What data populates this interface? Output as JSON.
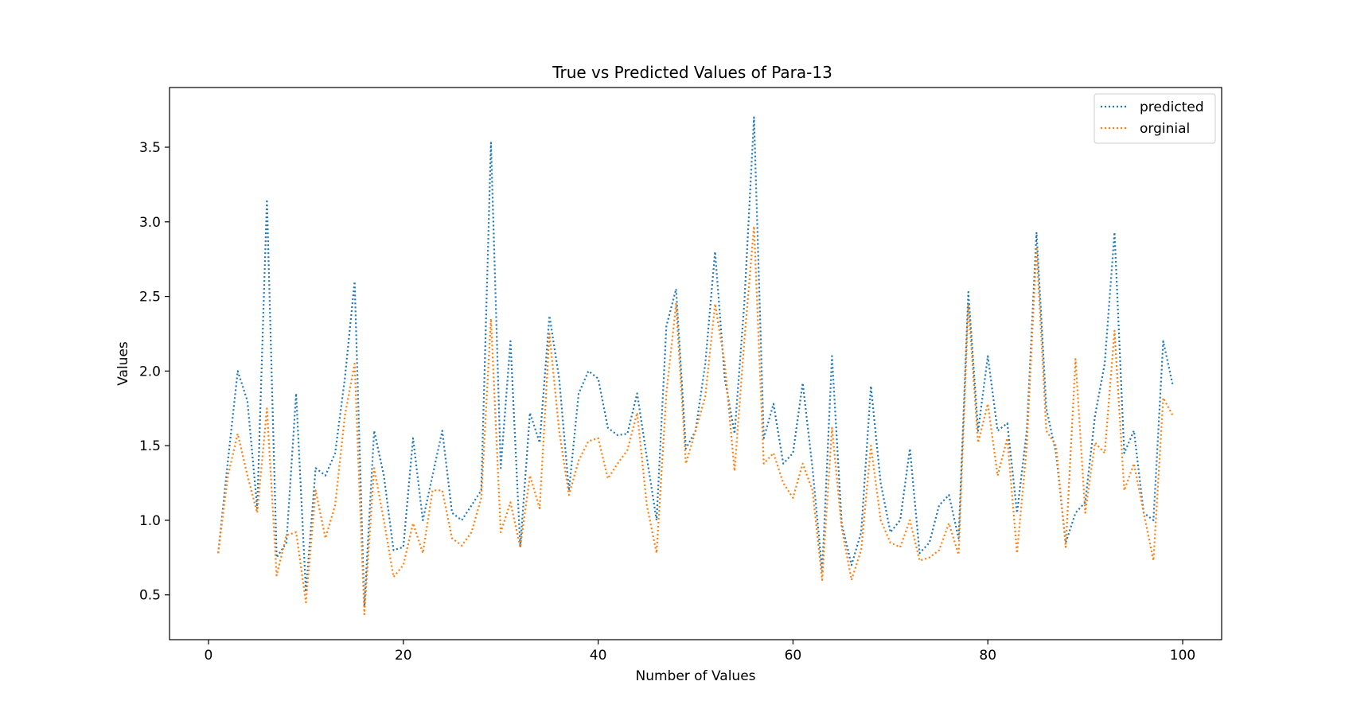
{
  "chart_data": {
    "type": "line",
    "title": "True vs Predicted Values of Para-13",
    "xlabel": "Number of Values",
    "ylabel": "Values",
    "xlim": [
      -4,
      104
    ],
    "ylim": [
      0.2,
      3.9
    ],
    "xticks": [
      0,
      20,
      40,
      60,
      80,
      100
    ],
    "yticks": [
      0.5,
      1.0,
      1.5,
      2.0,
      2.5,
      3.0,
      3.5
    ],
    "xtick_labels": [
      "0",
      "20",
      "40",
      "60",
      "80",
      "100"
    ],
    "ytick_labels": [
      "0.5",
      "1.0",
      "1.5",
      "2.0",
      "2.5",
      "3.0",
      "3.5"
    ],
    "grid": false,
    "legend_position": "top-right",
    "line_style": "dotted",
    "x": [
      1,
      2,
      3,
      4,
      5,
      6,
      7,
      8,
      9,
      10,
      11,
      12,
      13,
      14,
      15,
      16,
      17,
      18,
      19,
      20,
      21,
      22,
      23,
      24,
      25,
      26,
      27,
      28,
      29,
      30,
      31,
      32,
      33,
      34,
      35,
      36,
      37,
      38,
      39,
      40,
      41,
      42,
      43,
      44,
      45,
      46,
      47,
      48,
      49,
      50,
      51,
      52,
      53,
      54,
      55,
      56,
      57,
      58,
      59,
      60,
      61,
      62,
      63,
      64,
      65,
      66,
      67,
      68,
      69,
      70,
      71,
      72,
      73,
      74,
      75,
      76,
      77,
      78,
      79,
      80,
      81,
      82,
      83,
      84,
      85,
      86,
      87,
      88,
      89,
      90,
      91,
      92,
      93,
      94,
      95,
      96,
      97,
      98,
      99
    ],
    "series": [
      {
        "name": "predicted",
        "color": "#1f77b4",
        "values": [
          0.78,
          1.4,
          2.0,
          1.8,
          1.08,
          3.15,
          0.75,
          0.85,
          1.85,
          0.52,
          1.35,
          1.3,
          1.45,
          1.95,
          2.6,
          0.42,
          1.6,
          1.3,
          0.8,
          0.82,
          1.55,
          1.0,
          1.3,
          1.6,
          1.05,
          1.0,
          1.1,
          1.2,
          3.53,
          1.35,
          2.2,
          0.82,
          1.72,
          1.52,
          2.37,
          1.95,
          1.2,
          1.85,
          2.0,
          1.95,
          1.62,
          1.57,
          1.58,
          1.85,
          1.42,
          1.0,
          2.3,
          2.55,
          1.48,
          1.6,
          2.05,
          2.8,
          1.95,
          1.58,
          2.45,
          3.7,
          1.55,
          1.78,
          1.38,
          1.45,
          1.92,
          1.35,
          0.66,
          2.1,
          0.98,
          0.7,
          0.92,
          1.9,
          1.25,
          0.92,
          1.0,
          1.48,
          0.78,
          0.85,
          1.1,
          1.17,
          0.88,
          2.53,
          1.6,
          2.1,
          1.6,
          1.65,
          1.05,
          1.6,
          2.93,
          1.75,
          1.45,
          0.85,
          1.05,
          1.12,
          1.7,
          2.05,
          2.93,
          1.45,
          1.6,
          1.05,
          1.0,
          2.2,
          1.9
        ]
      },
      {
        "name": "orginial",
        "color": "#ff7f0e",
        "values": [
          0.78,
          1.3,
          1.58,
          1.3,
          1.05,
          1.75,
          0.63,
          0.9,
          0.92,
          0.45,
          1.2,
          0.88,
          1.1,
          1.7,
          2.05,
          0.37,
          1.35,
          1.0,
          0.62,
          0.7,
          0.98,
          0.78,
          1.2,
          1.2,
          0.88,
          0.83,
          0.92,
          1.15,
          2.35,
          0.92,
          1.12,
          0.82,
          1.3,
          1.08,
          2.25,
          1.6,
          1.17,
          1.4,
          1.53,
          1.55,
          1.28,
          1.38,
          1.47,
          1.72,
          1.1,
          0.78,
          1.85,
          2.45,
          1.38,
          1.6,
          1.83,
          2.45,
          2.05,
          1.33,
          2.2,
          2.97,
          1.38,
          1.45,
          1.25,
          1.15,
          1.38,
          1.2,
          0.6,
          1.62,
          0.95,
          0.6,
          0.8,
          1.5,
          1.0,
          0.85,
          0.82,
          1.0,
          0.73,
          0.75,
          0.8,
          0.98,
          0.77,
          2.45,
          1.52,
          1.78,
          1.3,
          1.55,
          0.78,
          1.5,
          2.83,
          1.6,
          1.5,
          0.82,
          2.08,
          1.05,
          1.52,
          1.45,
          2.27,
          1.2,
          1.38,
          1.05,
          0.73,
          1.82,
          1.7
        ]
      }
    ]
  }
}
